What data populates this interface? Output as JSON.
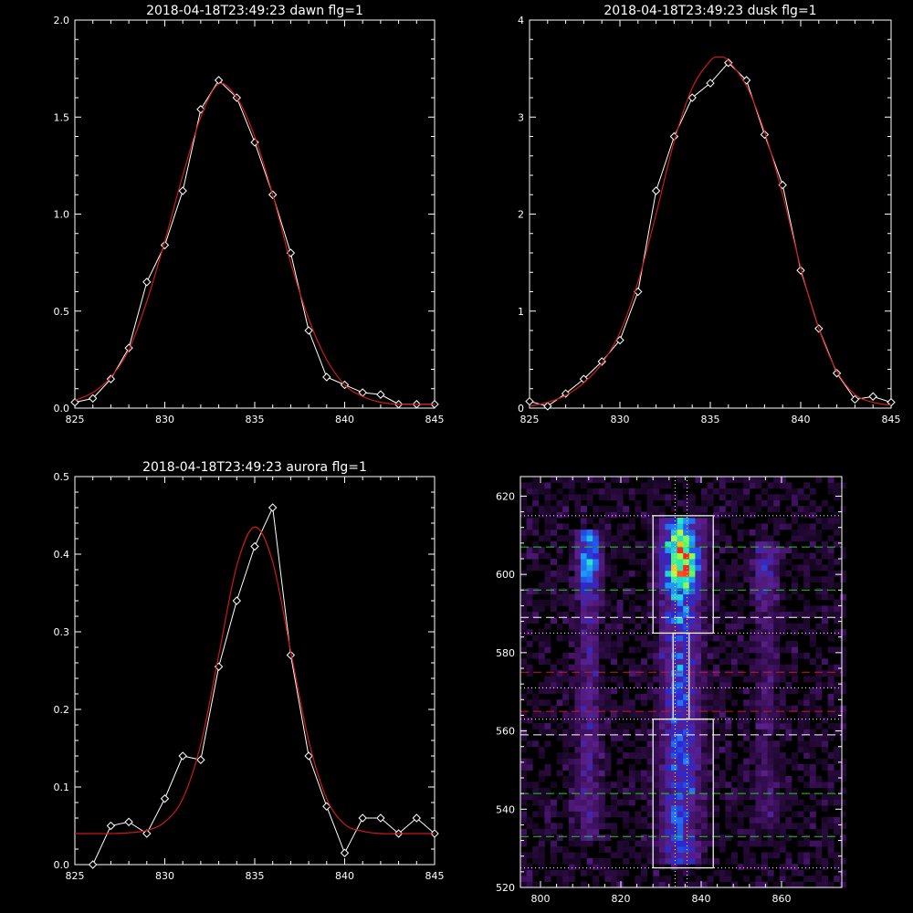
{
  "figure": {
    "background": "#000000",
    "axis_color": "#ffffff",
    "fit_color": "#cc1a1a"
  },
  "chart_data": [
    {
      "id": "dawn",
      "type": "line",
      "title": "2018-04-18T23:49:23 dawn flg=1",
      "xlim": [
        825,
        845
      ],
      "ylim": [
        0,
        2.0
      ],
      "xticks": [
        825,
        830,
        835,
        840,
        845
      ],
      "xtick_labels": [
        "825",
        "830",
        "835",
        "840",
        "845"
      ],
      "yticks": [
        0,
        0.5,
        1.0,
        1.5,
        2.0
      ],
      "ytick_labels": [
        "0.0",
        "0.5",
        "1.0",
        "1.5",
        "2.0"
      ],
      "series": [
        {
          "role": "measured",
          "color": "#ffffff",
          "marker": "diamond",
          "x": [
            825,
            826,
            827,
            828,
            829,
            830,
            831,
            832,
            833,
            834,
            835,
            836,
            837,
            838,
            839,
            840,
            841,
            842,
            843,
            844,
            845
          ],
          "y": [
            0.03,
            0.05,
            0.15,
            0.31,
            0.65,
            0.84,
            1.12,
            1.54,
            1.69,
            1.6,
            1.37,
            1.1,
            0.8,
            0.4,
            0.16,
            0.12,
            0.08,
            0.07,
            0.02,
            0.02,
            0.02
          ]
        },
        {
          "role": "fit",
          "color": "#cc1a1a",
          "x": [
            825,
            826,
            827,
            828,
            829,
            830,
            831,
            832,
            833,
            834,
            835,
            836,
            837,
            838,
            839,
            840,
            841,
            842,
            843,
            844,
            845
          ],
          "y": [
            0.04,
            0.08,
            0.16,
            0.3,
            0.55,
            0.86,
            1.2,
            1.5,
            1.67,
            1.6,
            1.4,
            1.1,
            0.75,
            0.46,
            0.25,
            0.12,
            0.06,
            0.03,
            0.02,
            0.02,
            0.02
          ]
        }
      ]
    },
    {
      "id": "dusk",
      "type": "line",
      "title": "2018-04-18T23:49:23 dusk flg=1",
      "xlim": [
        825,
        845
      ],
      "ylim": [
        0,
        4
      ],
      "xticks": [
        825,
        830,
        835,
        840,
        845
      ],
      "xtick_labels": [
        "825",
        "830",
        "835",
        "840",
        "845"
      ],
      "yticks": [
        0,
        1,
        2,
        3,
        4
      ],
      "ytick_labels": [
        "0",
        "1",
        "2",
        "3",
        "4"
      ],
      "series": [
        {
          "role": "measured",
          "color": "#ffffff",
          "marker": "diamond",
          "x": [
            825,
            826,
            827,
            828,
            829,
            830,
            831,
            832,
            833,
            834,
            835,
            836,
            837,
            838,
            839,
            840,
            841,
            842,
            843,
            844,
            845
          ],
          "y": [
            0.07,
            0.02,
            0.15,
            0.3,
            0.48,
            0.7,
            1.2,
            2.24,
            2.8,
            3.2,
            3.35,
            3.56,
            3.38,
            2.82,
            2.3,
            1.42,
            0.82,
            0.36,
            0.09,
            0.12,
            0.06
          ]
        },
        {
          "role": "fit",
          "color": "#cc1a1a",
          "x": [
            825,
            826,
            827,
            828,
            829,
            830,
            831,
            832,
            833,
            834,
            835,
            835.5,
            836,
            837,
            838,
            839,
            840,
            841,
            842,
            843,
            844,
            845
          ],
          "y": [
            0.02,
            0.06,
            0.13,
            0.26,
            0.46,
            0.78,
            1.3,
            2.0,
            2.75,
            3.3,
            3.58,
            3.62,
            3.58,
            3.32,
            2.85,
            2.2,
            1.45,
            0.82,
            0.38,
            0.14,
            0.06,
            0.03
          ]
        }
      ]
    },
    {
      "id": "aurora",
      "type": "line",
      "title": "2018-04-18T23:49:23 aurora flg=1",
      "xlim": [
        825,
        845
      ],
      "ylim": [
        0,
        0.5
      ],
      "xticks": [
        825,
        830,
        835,
        840,
        845
      ],
      "xtick_labels": [
        "825",
        "830",
        "835",
        "840",
        "845"
      ],
      "yticks": [
        0,
        0.1,
        0.2,
        0.3,
        0.4,
        0.5
      ],
      "ytick_labels": [
        "0.0",
        "0.1",
        "0.2",
        "0.3",
        "0.4",
        "0.5"
      ],
      "series": [
        {
          "role": "measured",
          "color": "#ffffff",
          "marker": "diamond",
          "x": [
            826,
            827,
            828,
            829,
            830,
            831,
            832,
            833,
            834,
            835,
            836,
            837,
            838,
            839,
            840,
            841,
            842,
            843,
            844,
            845
          ],
          "y": [
            0.0,
            0.05,
            0.055,
            0.04,
            0.085,
            0.14,
            0.135,
            0.255,
            0.34,
            0.41,
            0.46,
            0.27,
            0.14,
            0.075,
            0.015,
            0.06,
            0.06,
            0.04,
            0.06,
            0.04
          ]
        },
        {
          "role": "fit",
          "color": "#cc1a1a",
          "x": [
            825,
            826,
            827,
            828,
            829,
            830,
            831,
            832,
            833,
            834,
            835,
            836,
            837,
            838,
            839,
            840,
            841,
            842,
            843,
            844,
            845
          ],
          "y": [
            0.04,
            0.04,
            0.04,
            0.041,
            0.044,
            0.055,
            0.085,
            0.155,
            0.27,
            0.385,
            0.435,
            0.39,
            0.275,
            0.16,
            0.085,
            0.052,
            0.043,
            0.04,
            0.04,
            0.04,
            0.04
          ]
        }
      ]
    },
    {
      "id": "image",
      "type": "heatmap",
      "title": "",
      "xlim": [
        795,
        875
      ],
      "ylim": [
        520,
        625
      ],
      "xticks": [
        800,
        820,
        840,
        860
      ],
      "xtick_labels": [
        "800",
        "820",
        "840",
        "860"
      ],
      "yticks": [
        520,
        540,
        560,
        580,
        600,
        620
      ],
      "ytick_labels": [
        "520",
        "540",
        "560",
        "580",
        "600",
        "620"
      ],
      "colormap": [
        "#000000",
        "#3a0f58",
        "#5a1f8a",
        "#2a2ad2",
        "#1f8fff",
        "#22e0d0",
        "#50ff60",
        "#ffff20",
        "#ff2020"
      ],
      "bright_columns": [
        {
          "center_x": 835,
          "width": 8,
          "y_range": [
            525,
            614
          ],
          "peak_y": 603,
          "peak_value": 1.0
        },
        {
          "center_x": 812,
          "width": 5,
          "y_range": [
            532,
            610
          ],
          "peak_y": 603,
          "peak_value": 0.55
        },
        {
          "center_x": 856,
          "width": 5,
          "y_range": [
            535,
            608
          ],
          "peak_y": 601,
          "peak_value": 0.3
        }
      ],
      "boxes": [
        {
          "x": [
            828,
            843
          ],
          "y": [
            585,
            615
          ]
        },
        {
          "x": [
            828,
            843
          ],
          "y": [
            525,
            563
          ]
        },
        {
          "x": [
            833,
            837
          ],
          "y": [
            563,
            585
          ]
        }
      ],
      "hlines": [
        {
          "y": 615,
          "color": "#ffffff",
          "style": "dotted"
        },
        {
          "y": 607,
          "color": "#20d020",
          "style": "dashed"
        },
        {
          "y": 596,
          "color": "#20d020",
          "style": "dashed"
        },
        {
          "y": 589,
          "color": "#ffffff",
          "style": "dashed"
        },
        {
          "y": 585,
          "color": "#ffffff",
          "style": "dotted"
        },
        {
          "y": 575,
          "color": "#cc1a1a",
          "style": "dashed"
        },
        {
          "y": 571,
          "color": "#ffffff",
          "style": "dotted"
        },
        {
          "y": 565,
          "color": "#cc1a1a",
          "style": "dashed"
        },
        {
          "y": 563,
          "color": "#ffffff",
          "style": "dotted"
        },
        {
          "y": 559,
          "color": "#ffffff",
          "style": "dashed"
        },
        {
          "y": 544,
          "color": "#20d020",
          "style": "dashed"
        },
        {
          "y": 533,
          "color": "#20d020",
          "style": "dashed"
        },
        {
          "y": 525,
          "color": "#ffffff",
          "style": "dotted"
        }
      ],
      "vlines": [
        {
          "x": 833.5,
          "color": "#ffffff",
          "style": "dotted"
        },
        {
          "x": 836.5,
          "color": "#ffffff",
          "style": "dotted"
        }
      ]
    }
  ]
}
